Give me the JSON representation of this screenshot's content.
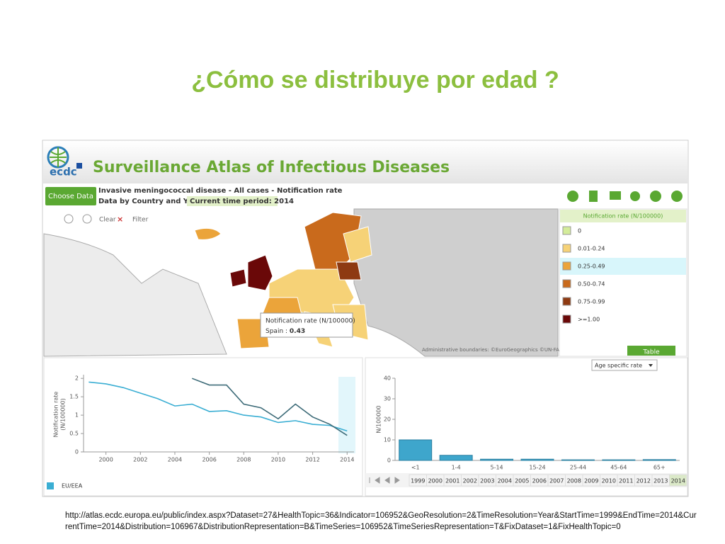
{
  "slide_title": "¿Cómo se distribuye por edad ?",
  "app": {
    "logo_text": "ecdc",
    "title": "Surveillance Atlas of Infectious Diseases",
    "choose_data": "Choose Data",
    "subtitle_1": "Invasive meningococcal disease - All cases - Notification rate",
    "subtitle_2": "Data by Country and Year.",
    "current_period": "Current time period: 2014",
    "clear": "Clear",
    "filter": "Filter"
  },
  "map": {
    "legend_title": "Notification rate (N/100000)",
    "legend": [
      {
        "label": "0",
        "color": "#d4ec9a"
      },
      {
        "label": "0.01-0.24",
        "color": "#f6d277"
      },
      {
        "label": "0.25-0.49",
        "color": "#eba43a"
      },
      {
        "label": "0.50-0.74",
        "color": "#c96a1c"
      },
      {
        "label": "0.75-0.99",
        "color": "#8e3a12"
      },
      {
        "label": ">=1.00",
        "color": "#6a0808"
      }
    ],
    "tooltip_title": "Notification rate (N/100000)",
    "tooltip_country": "Spain :",
    "tooltip_value": 0.43,
    "attribution": "Administrative boundaries: ©EuroGeographics ©UN-FAO",
    "table_button": "Table"
  },
  "line_chart": {
    "type": "line",
    "ylabel": [
      "Notification rate",
      "(N/100000)"
    ],
    "x": [
      1999,
      2000,
      2001,
      2002,
      2003,
      2004,
      2005,
      2006,
      2007,
      2008,
      2009,
      2010,
      2011,
      2012,
      2013,
      2014
    ],
    "xlim": [
      1998.7,
      2014.4
    ],
    "xticks": [
      2000,
      2002,
      2004,
      2006,
      2008,
      2010,
      2012,
      2014
    ],
    "ylim": [
      0,
      2.1
    ],
    "yticks": [
      0,
      0.5,
      1,
      1.5,
      2
    ],
    "series": [
      {
        "name": "EU/EEA",
        "color": "#3aaed3",
        "values": [
          1.9,
          1.85,
          1.75,
          1.6,
          1.45,
          1.25,
          1.3,
          1.1,
          1.12,
          1.0,
          0.95,
          0.8,
          0.85,
          0.75,
          0.72,
          0.57
        ]
      },
      {
        "color": "#3d6b78",
        "values": [
          null,
          null,
          null,
          null,
          null,
          null,
          2.0,
          1.82,
          1.82,
          1.3,
          1.2,
          0.9,
          1.3,
          0.95,
          0.75,
          0.45
        ]
      }
    ]
  },
  "bar_chart": {
    "type": "bar",
    "dropdown": "Age specific rate",
    "ylabel": "N/100000",
    "categories": [
      "<1",
      "1-4",
      "5-14",
      "15-24",
      "25-44",
      "45-64",
      "65+"
    ],
    "values": [
      10,
      2.5,
      0.6,
      0.6,
      0.3,
      0.3,
      0.4
    ],
    "color": "#3ea6cc",
    "ylim": [
      0,
      40
    ],
    "yticks": [
      0,
      10,
      20,
      30,
      40
    ],
    "timeline": [
      1999,
      2000,
      2001,
      2002,
      2003,
      2004,
      2005,
      2006,
      2007,
      2008,
      2009,
      2010,
      2011,
      2012,
      2013,
      2014
    ]
  },
  "url": "http://atlas.ecdc.europa.eu/public/index.aspx?Dataset=27&HealthTopic=36&Indicator=106952&GeoResolution=2&TimeResolution=Year&StartTime=1999&EndTime=2014&CurrentTime=2014&Distribution=106967&DistributionRepresentation=B&TimeSeries=106952&TimeSeriesRepresentation=T&FixDataset=1&FixHealthTopic=0"
}
